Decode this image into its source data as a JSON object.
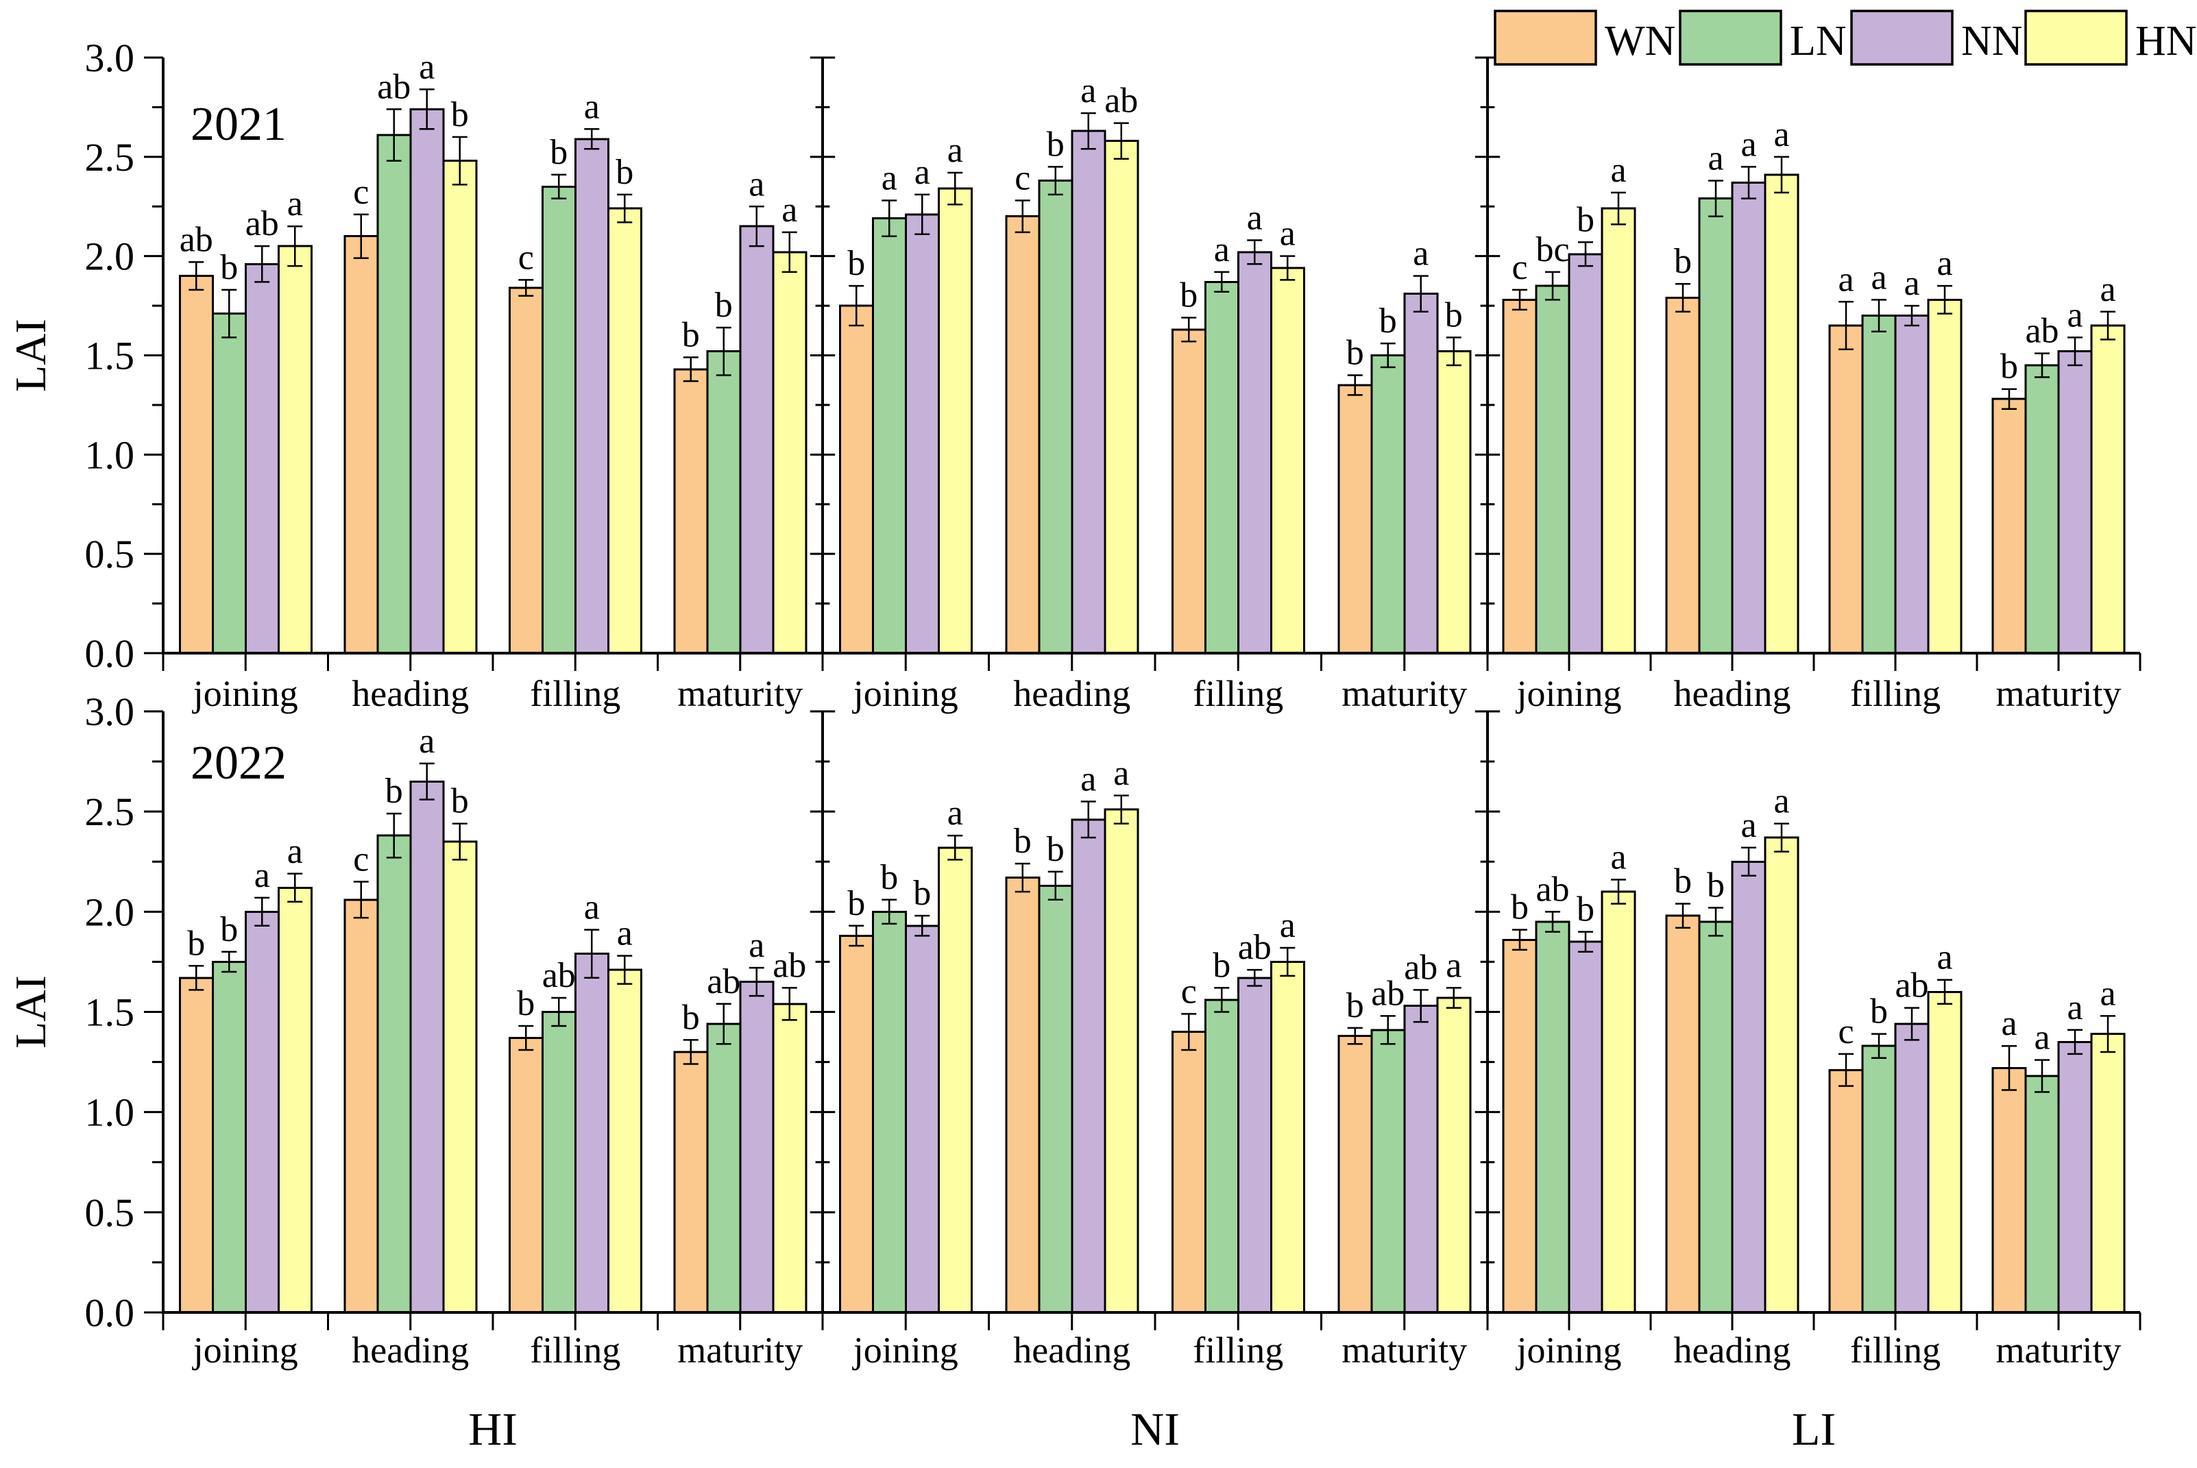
{
  "figure": {
    "description": "Grouped bar chart of LAI across growth stages for two years and three irrigation levels",
    "background": "#ffffff"
  },
  "chart_data": {
    "type": "bar",
    "ylabel": "LAI",
    "ylim": [
      0.0,
      3.0
    ],
    "ytick_step": 0.5,
    "minor_tick_step": 0.25,
    "ytick_labels": [
      "0.0",
      "0.5",
      "1.0",
      "1.5",
      "2.0",
      "2.5",
      "3.0"
    ],
    "grid": "off",
    "legend_position": "top-right",
    "rows": [
      "2021",
      "2022"
    ],
    "panels": [
      "HI",
      "NI",
      "LI"
    ],
    "categories": [
      "joining",
      "heading",
      "filling",
      "maturity"
    ],
    "treatments": [
      {
        "name": "WN",
        "color": "#FBC98D"
      },
      {
        "name": "LN",
        "color": "#A0D49E"
      },
      {
        "name": "NN",
        "color": "#C6B2D9"
      },
      {
        "name": "HN",
        "color": "#FEFEA4"
      }
    ],
    "bar_border_color": "#000000",
    "bars_format": [
      "value",
      "error",
      "letter"
    ],
    "values": {
      "2021": {
        "HI": {
          "joining": {
            "WN": [
              1.9,
              0.07,
              "ab"
            ],
            "LN": [
              1.71,
              0.12,
              "b"
            ],
            "NN": [
              1.96,
              0.09,
              "ab"
            ],
            "HN": [
              2.05,
              0.1,
              "a"
            ]
          },
          "heading": {
            "WN": [
              2.1,
              0.11,
              "c"
            ],
            "LN": [
              2.61,
              0.13,
              "ab"
            ],
            "NN": [
              2.74,
              0.1,
              "a"
            ],
            "HN": [
              2.48,
              0.12,
              "b"
            ]
          },
          "filling": {
            "WN": [
              1.84,
              0.04,
              "c"
            ],
            "LN": [
              2.35,
              0.06,
              "b"
            ],
            "NN": [
              2.59,
              0.05,
              "a"
            ],
            "HN": [
              2.24,
              0.07,
              "b"
            ]
          },
          "maturity": {
            "WN": [
              1.43,
              0.06,
              "b"
            ],
            "LN": [
              1.52,
              0.12,
              "b"
            ],
            "NN": [
              2.15,
              0.1,
              "a"
            ],
            "HN": [
              2.02,
              0.1,
              "a"
            ]
          }
        },
        "NI": {
          "joining": {
            "WN": [
              1.75,
              0.1,
              "b"
            ],
            "LN": [
              2.19,
              0.09,
              "a"
            ],
            "NN": [
              2.21,
              0.1,
              "a"
            ],
            "HN": [
              2.34,
              0.08,
              "a"
            ]
          },
          "heading": {
            "WN": [
              2.2,
              0.08,
              "c"
            ],
            "LN": [
              2.38,
              0.07,
              "b"
            ],
            "NN": [
              2.63,
              0.09,
              "a"
            ],
            "HN": [
              2.58,
              0.09,
              "ab"
            ]
          },
          "filling": {
            "WN": [
              1.63,
              0.06,
              "b"
            ],
            "LN": [
              1.87,
              0.05,
              "a"
            ],
            "NN": [
              2.02,
              0.06,
              "a"
            ],
            "HN": [
              1.94,
              0.06,
              "a"
            ]
          },
          "maturity": {
            "WN": [
              1.35,
              0.05,
              "b"
            ],
            "LN": [
              1.5,
              0.06,
              "b"
            ],
            "NN": [
              1.81,
              0.09,
              "a"
            ],
            "HN": [
              1.52,
              0.07,
              "b"
            ]
          }
        },
        "LI": {
          "joining": {
            "WN": [
              1.78,
              0.05,
              "c"
            ],
            "LN": [
              1.85,
              0.07,
              "bc"
            ],
            "NN": [
              2.01,
              0.06,
              "b"
            ],
            "HN": [
              2.24,
              0.08,
              "a"
            ]
          },
          "heading": {
            "WN": [
              1.79,
              0.07,
              "b"
            ],
            "LN": [
              2.29,
              0.09,
              "a"
            ],
            "NN": [
              2.37,
              0.08,
              "a"
            ],
            "HN": [
              2.41,
              0.09,
              "a"
            ]
          },
          "filling": {
            "WN": [
              1.65,
              0.12,
              "a"
            ],
            "LN": [
              1.7,
              0.08,
              "a"
            ],
            "NN": [
              1.7,
              0.05,
              "a"
            ],
            "HN": [
              1.78,
              0.07,
              "a"
            ]
          },
          "maturity": {
            "WN": [
              1.28,
              0.05,
              "b"
            ],
            "LN": [
              1.45,
              0.06,
              "ab"
            ],
            "NN": [
              1.52,
              0.07,
              "a"
            ],
            "HN": [
              1.65,
              0.07,
              "a"
            ]
          }
        }
      },
      "2022": {
        "HI": {
          "joining": {
            "WN": [
              1.67,
              0.06,
              "b"
            ],
            "LN": [
              1.75,
              0.05,
              "b"
            ],
            "NN": [
              2.0,
              0.07,
              "a"
            ],
            "HN": [
              2.12,
              0.07,
              "a"
            ]
          },
          "heading": {
            "WN": [
              2.06,
              0.09,
              "c"
            ],
            "LN": [
              2.38,
              0.11,
              "b"
            ],
            "NN": [
              2.65,
              0.09,
              "a"
            ],
            "HN": [
              2.35,
              0.09,
              "b"
            ]
          },
          "filling": {
            "WN": [
              1.37,
              0.06,
              "b"
            ],
            "LN": [
              1.5,
              0.07,
              "ab"
            ],
            "NN": [
              1.79,
              0.12,
              "a"
            ],
            "HN": [
              1.71,
              0.07,
              "a"
            ]
          },
          "maturity": {
            "WN": [
              1.3,
              0.06,
              "b"
            ],
            "LN": [
              1.44,
              0.1,
              "ab"
            ],
            "NN": [
              1.65,
              0.07,
              "a"
            ],
            "HN": [
              1.54,
              0.08,
              "ab"
            ]
          }
        },
        "NI": {
          "joining": {
            "WN": [
              1.88,
              0.05,
              "b"
            ],
            "LN": [
              2.0,
              0.06,
              "b"
            ],
            "NN": [
              1.93,
              0.05,
              "b"
            ],
            "HN": [
              2.32,
              0.06,
              "a"
            ]
          },
          "heading": {
            "WN": [
              2.17,
              0.07,
              "b"
            ],
            "LN": [
              2.13,
              0.07,
              "b"
            ],
            "NN": [
              2.46,
              0.09,
              "a"
            ],
            "HN": [
              2.51,
              0.07,
              "a"
            ]
          },
          "filling": {
            "WN": [
              1.4,
              0.09,
              "c"
            ],
            "LN": [
              1.56,
              0.06,
              "b"
            ],
            "NN": [
              1.67,
              0.04,
              "ab"
            ],
            "HN": [
              1.75,
              0.07,
              "a"
            ]
          },
          "maturity": {
            "WN": [
              1.38,
              0.04,
              "b"
            ],
            "LN": [
              1.41,
              0.07,
              "ab"
            ],
            "NN": [
              1.53,
              0.08,
              "ab"
            ],
            "HN": [
              1.57,
              0.05,
              "a"
            ]
          }
        },
        "LI": {
          "joining": {
            "WN": [
              1.86,
              0.05,
              "b"
            ],
            "LN": [
              1.95,
              0.05,
              "ab"
            ],
            "NN": [
              1.85,
              0.05,
              "b"
            ],
            "HN": [
              2.1,
              0.06,
              "a"
            ]
          },
          "heading": {
            "WN": [
              1.98,
              0.06,
              "b"
            ],
            "LN": [
              1.95,
              0.07,
              "b"
            ],
            "NN": [
              2.25,
              0.07,
              "a"
            ],
            "HN": [
              2.37,
              0.07,
              "a"
            ]
          },
          "filling": {
            "WN": [
              1.21,
              0.08,
              "c"
            ],
            "LN": [
              1.33,
              0.06,
              "b"
            ],
            "NN": [
              1.44,
              0.08,
              "ab"
            ],
            "HN": [
              1.6,
              0.06,
              "a"
            ]
          },
          "maturity": {
            "WN": [
              1.22,
              0.11,
              "a"
            ],
            "LN": [
              1.18,
              0.08,
              "a"
            ],
            "NN": [
              1.35,
              0.06,
              "a"
            ],
            "HN": [
              1.39,
              0.09,
              "a"
            ]
          }
        }
      }
    }
  }
}
